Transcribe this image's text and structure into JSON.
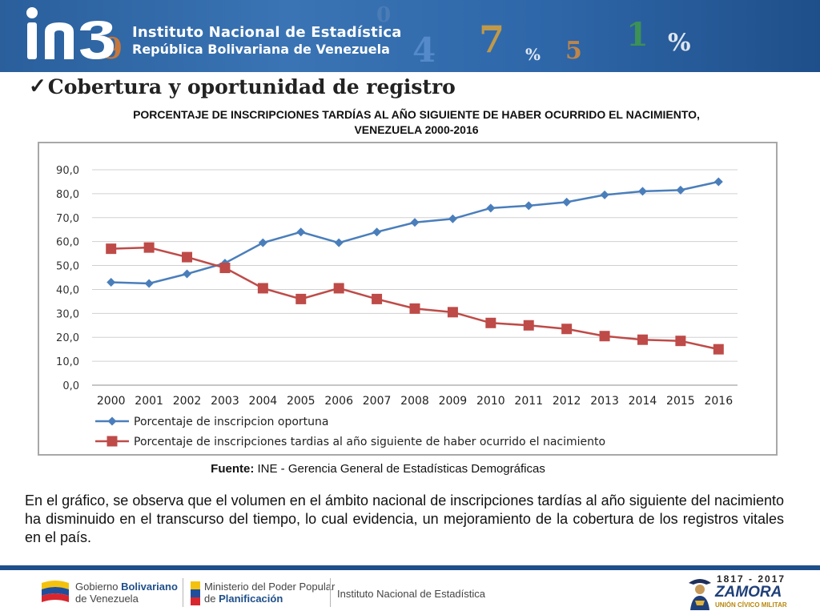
{
  "header": {
    "institute": "Instituto Nacional de Estadística",
    "republic": "República Bolivariana de Venezuela"
  },
  "section": {
    "title": "Cobertura y oportunidad de registro",
    "check_icon": "check-mark-icon"
  },
  "chart_title": "PORCENTAJE DE INSCRIPCIONES TARDÍAS AL AÑO SIGUIENTE DE HABER OCURRIDO EL NACIMIENTO, VENEZUELA 2000-2016",
  "chart_data": {
    "type": "line",
    "title": "PORCENTAJE DE INSCRIPCIONES TARDÍAS AL AÑO SIGUIENTE DE HABER OCURRIDO EL NACIMIENTO, VENEZUELA 2000-2016",
    "x": [
      "2000",
      "2001",
      "2002",
      "2003",
      "2004",
      "2005",
      "2006",
      "2007",
      "2008",
      "2009",
      "2010",
      "2011",
      "2012",
      "2013",
      "2014",
      "2015",
      "2016"
    ],
    "y_ticks": [
      "0,0",
      "10,0",
      "20,0",
      "30,0",
      "40,0",
      "50,0",
      "60,0",
      "70,0",
      "80,0",
      "90,0"
    ],
    "ylim": [
      0,
      90
    ],
    "grid": true,
    "legend_position": "bottom",
    "series": [
      {
        "name": "Porcentaje de inscripcion oportuna",
        "color": "#4a7ebb",
        "marker": "diamond",
        "values": [
          43.0,
          42.5,
          46.5,
          51.0,
          59.5,
          64.0,
          59.5,
          64.0,
          68.0,
          69.5,
          74.0,
          75.0,
          76.5,
          79.5,
          81.0,
          81.5,
          85.0
        ]
      },
      {
        "name": "Porcentaje de inscripciones tardias al año siguiente de haber ocurrido el nacimiento",
        "color": "#be4b48",
        "marker": "square",
        "values": [
          57.0,
          57.5,
          53.5,
          49.0,
          40.5,
          36.0,
          40.5,
          36.0,
          32.0,
          30.5,
          26.0,
          25.0,
          23.5,
          20.5,
          19.0,
          18.5,
          15.0
        ]
      }
    ]
  },
  "source": {
    "label": "Fuente:",
    "text": " INE - Gerencia General de Estadísticas Demográficas"
  },
  "paragraph": "En el gráfico, se  observa que el volumen en el ámbito nacional de inscripciones tardías al año siguiente del nacimiento ha disminuido en el transcurso del tiempo, lo cual evidencia, un mejoramiento de la cobertura de los registros vitales en el país.",
  "footer": {
    "gov_line1_a": "Gobierno ",
    "gov_line1_b": "Bolivariano",
    "gov_line2": "de Venezuela",
    "ministry_line1": "Ministerio del Poder Popular",
    "ministry_line2_a": "de ",
    "ministry_line2_b": "Planificación",
    "ine": "Instituto Nacional de Estadística",
    "zamora_years": "1817 - 2017",
    "zamora_name": "ZAMORA",
    "zamora_sub": "UNIÓN CÍVICO MILITAR"
  }
}
